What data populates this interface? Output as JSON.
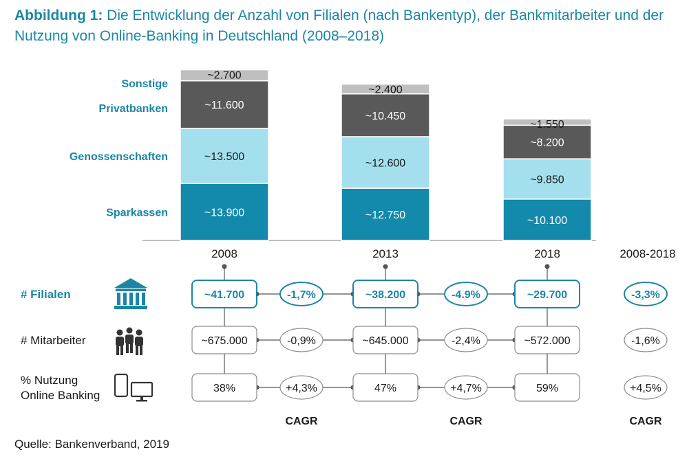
{
  "title": {
    "prefix": "Abbildung 1:",
    "text": "Die Entwicklung der Anzahl von Filialen (nach Bankentyp), der Bankmitarbeiter und der Nutzung von Online-Banking in Deutschland (2008–2018)"
  },
  "source": "Quelle: Bankenverband, 2019",
  "colors": {
    "Sparkassen": "#1389ab",
    "Genossenschaften": "#a3dfed",
    "Privatbanken": "#595959",
    "Sonstige": "#bfbfbf",
    "accent": "#1b86a4"
  },
  "chart_data": {
    "type": "bar",
    "stacked": true,
    "categories": [
      "2008",
      "2013",
      "2018"
    ],
    "series": [
      {
        "name": "Sparkassen",
        "values": [
          13900,
          12750,
          10100
        ],
        "labels": [
          "~13.900",
          "~12.750",
          "~10.100"
        ]
      },
      {
        "name": "Genossenschaften",
        "values": [
          13500,
          12600,
          9850
        ],
        "labels": [
          "~13.500",
          "~12.600",
          "~9.850"
        ]
      },
      {
        "name": "Privatbanken",
        "values": [
          11600,
          10450,
          8200
        ],
        "labels": [
          "~11.600",
          "~10.450",
          "~8.200"
        ]
      },
      {
        "name": "Sonstige",
        "values": [
          2700,
          2400,
          1550
        ],
        "labels": [
          "~2.700",
          "~2.400",
          "~1.550"
        ]
      }
    ],
    "legend_placement": "left"
  },
  "metrics": {
    "period_label": "2008-2018",
    "cagr_label": "CAGR",
    "rows": [
      {
        "label": [
          "# Filialen"
        ],
        "icon": "bank-icon",
        "highlight": true,
        "values": [
          "~41.700",
          "~38.200",
          "~29.700"
        ],
        "cagr": [
          "-1,7%",
          "-4.9%",
          "-3,3%"
        ]
      },
      {
        "label": [
          "# Mitarbeiter"
        ],
        "icon": "people-icon",
        "highlight": false,
        "values": [
          "~675.000",
          "~645.000",
          "~572.000"
        ],
        "cagr": [
          "-0,9%",
          "-2,4%",
          "-1,6%"
        ]
      },
      {
        "label": [
          "% Nutzung",
          "Online Banking"
        ],
        "icon": "devices-icon",
        "highlight": false,
        "values": [
          "38%",
          "47%",
          "59%"
        ],
        "cagr": [
          "+4,3%",
          "+4,7%",
          "+4,5%"
        ]
      }
    ]
  }
}
